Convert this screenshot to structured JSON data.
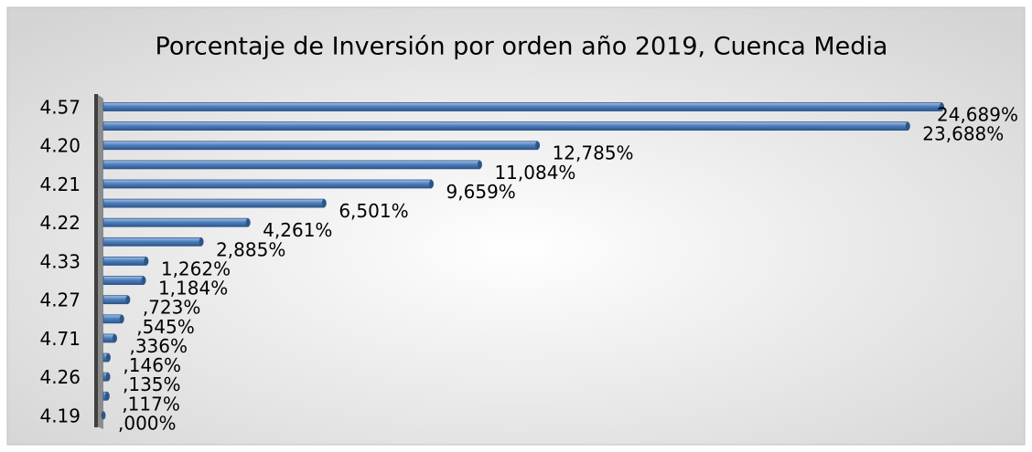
{
  "chart_data": {
    "type": "bar",
    "orientation": "horizontal",
    "title": "Porcentaje de Inversión por orden año 2019, Cuenca Media",
    "categories": [
      "4.57",
      null,
      "4.20",
      null,
      "4.21",
      null,
      "4.22",
      null,
      "4.33",
      null,
      "4.27",
      null,
      "4.71",
      null,
      "4.26",
      null,
      "4.19"
    ],
    "values": [
      24.689,
      23.688,
      12.785,
      11.084,
      9.659,
      6.501,
      4.261,
      2.885,
      1.262,
      1.184,
      0.723,
      0.545,
      0.336,
      0.146,
      0.135,
      0.117,
      0.0
    ],
    "value_labels": [
      "24,689%",
      "23,688%",
      "12,785%",
      "11,084%",
      "9,659%",
      "6,501%",
      "4,261%",
      "2,885%",
      "1,262%",
      "1,184%",
      ",723%",
      ",545%",
      ",336%",
      ",146%",
      ",135%",
      ",117%",
      ",000%"
    ],
    "color": "#4f81bd",
    "xlim": [
      0,
      25
    ]
  }
}
